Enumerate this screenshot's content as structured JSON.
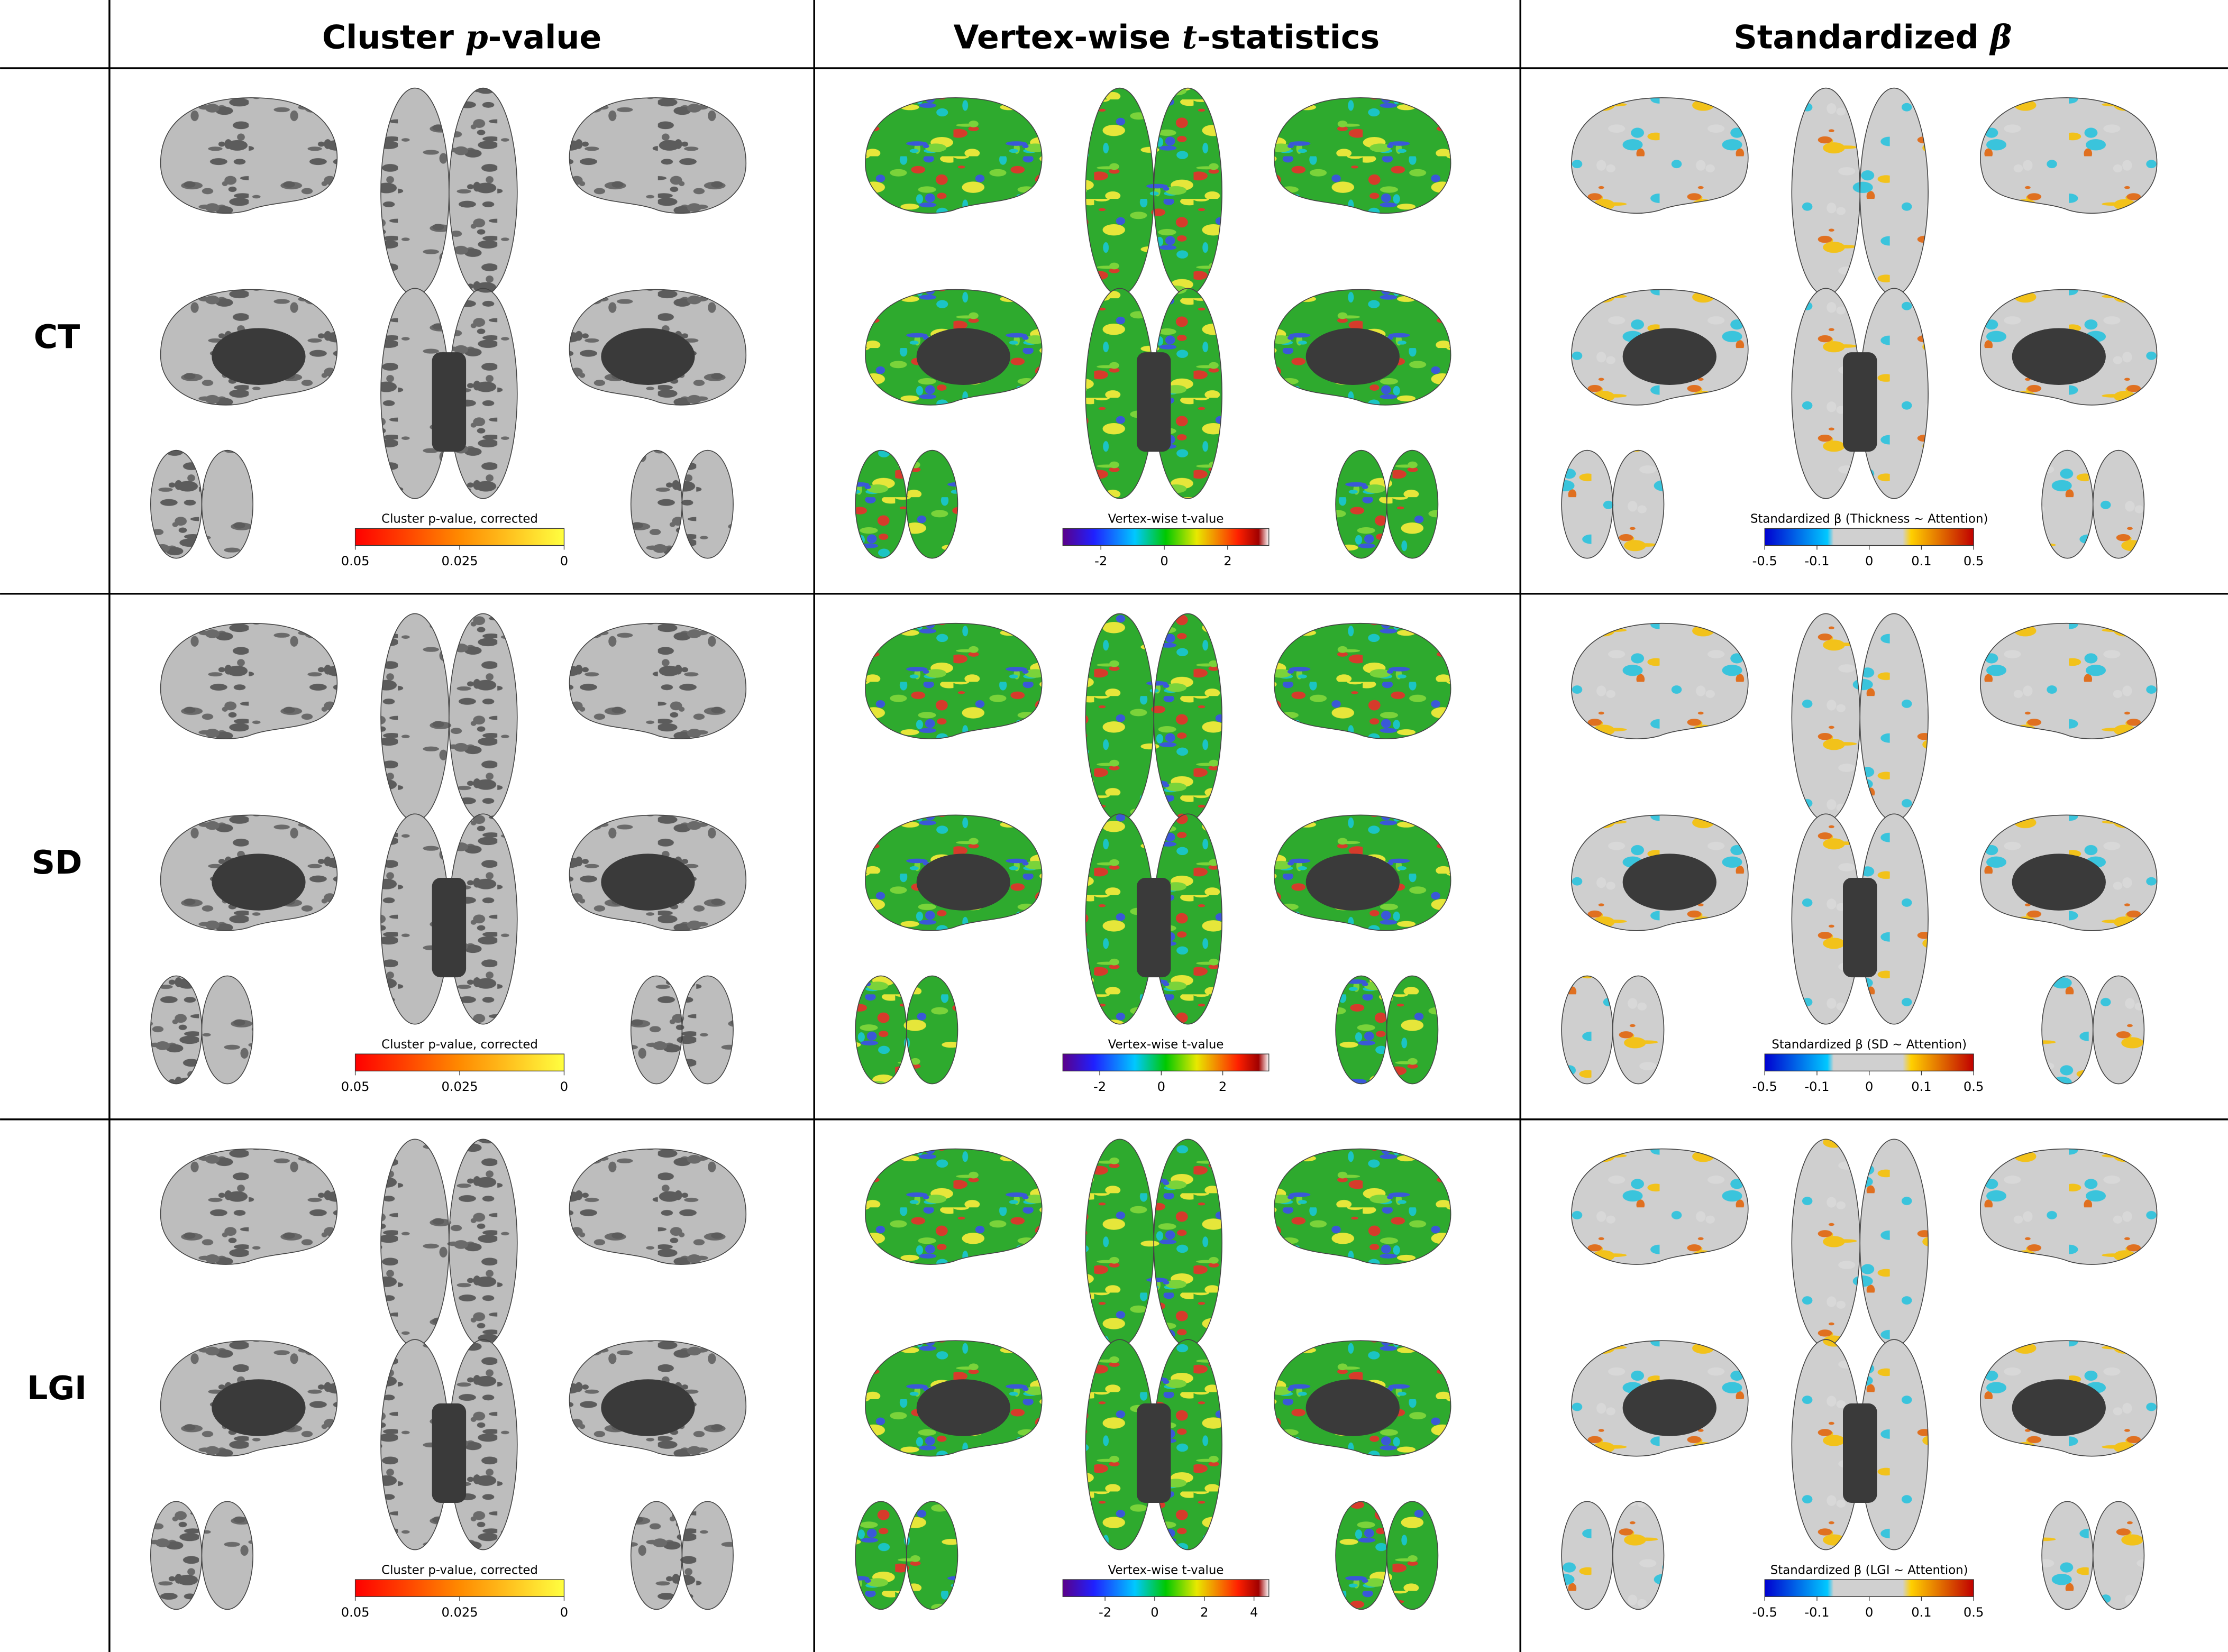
{
  "columns": [
    {
      "segments": [
        {
          "text": "Cluster "
        },
        {
          "text": "p",
          "italic": true
        },
        {
          "text": "-value"
        }
      ]
    },
    {
      "segments": [
        {
          "text": "Vertex-wise "
        },
        {
          "text": "t",
          "italic": true
        },
        {
          "text": "-statistics"
        }
      ]
    },
    {
      "segments": [
        {
          "text": "Standardized "
        },
        {
          "text": "β",
          "italic": true
        }
      ]
    }
  ],
  "rows": [
    {
      "label": "CT",
      "panels": [
        {
          "colorbar": {
            "title": "Cluster p-value, corrected",
            "ticks": [
              0.05,
              0.025,
              0
            ]
          }
        },
        {
          "colorbar": {
            "title": "Vertex-wise t-value",
            "ticks": [
              -2,
              0,
              2
            ],
            "range": [
              -3.2,
              3.3
            ]
          }
        },
        {
          "colorbar": {
            "title": "Standardized β (Thickness ~ Attention)",
            "ticks": [
              -0.5,
              -0.1,
              0,
              0.1,
              0.5
            ]
          }
        }
      ]
    },
    {
      "label": "SD",
      "panels": [
        {
          "colorbar": {
            "title": "Cluster p-value, corrected",
            "ticks": [
              0.05,
              0.025,
              0
            ]
          }
        },
        {
          "colorbar": {
            "title": "Vertex-wise t-value",
            "ticks": [
              -2,
              0,
              2
            ],
            "range": [
              -3.2,
              3.5
            ]
          }
        },
        {
          "colorbar": {
            "title": "Standardized β (SD ~ Attention)",
            "ticks": [
              -0.5,
              -0.1,
              0,
              0.1,
              0.5
            ]
          }
        }
      ]
    },
    {
      "label": "LGI",
      "panels": [
        {
          "colorbar": {
            "title": "Cluster p-value, corrected",
            "ticks": [
              0.05,
              0.025,
              0
            ]
          }
        },
        {
          "colorbar": {
            "title": "Vertex-wise t-value",
            "ticks": [
              -2,
              0,
              2,
              4
            ],
            "range": [
              -3.7,
              4.6
            ]
          }
        },
        {
          "colorbar": {
            "title": "Standardized β (LGI ~ Attention)",
            "ticks": [
              -0.5,
              -0.1,
              0,
              0.1,
              0.5
            ]
          }
        }
      ]
    }
  ]
}
